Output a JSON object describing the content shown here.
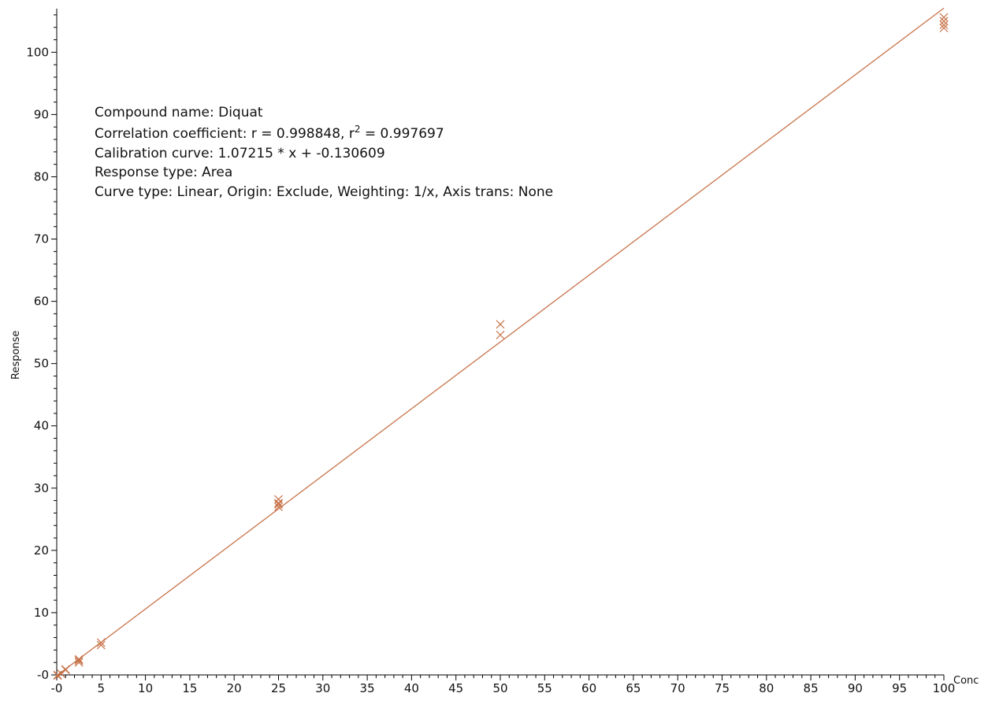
{
  "chart_data": {
    "type": "scatter",
    "xlabel": "Conc",
    "ylabel": "Response",
    "xlim": [
      0,
      100
    ],
    "ylim": [
      0,
      107
    ],
    "x_ticks": [
      0,
      5,
      10,
      15,
      20,
      25,
      30,
      35,
      40,
      45,
      50,
      55,
      60,
      65,
      70,
      75,
      80,
      85,
      90,
      95,
      100
    ],
    "x_tick_labels": [
      "-0",
      "5",
      "10",
      "15",
      "20",
      "25",
      "30",
      "35",
      "40",
      "45",
      "50",
      "55",
      "60",
      "65",
      "70",
      "75",
      "80",
      "85",
      "90",
      "95",
      "100"
    ],
    "y_ticks": [
      0,
      10,
      20,
      30,
      40,
      50,
      60,
      70,
      80,
      90,
      100
    ],
    "y_tick_labels": [
      "-0",
      "10",
      "20",
      "30",
      "40",
      "50",
      "60",
      "70",
      "80",
      "90",
      "100"
    ],
    "grid": false,
    "legend": "none",
    "color": "#c8734a",
    "points": [
      {
        "x": 0.1,
        "y": 0.0
      },
      {
        "x": 0.1,
        "y": -0.1
      },
      {
        "x": 0.5,
        "y": 0.2
      },
      {
        "x": 1.0,
        "y": 0.9
      },
      {
        "x": 1.0,
        "y": 0.8
      },
      {
        "x": 2.5,
        "y": 2.5
      },
      {
        "x": 2.5,
        "y": 2.3
      },
      {
        "x": 2.5,
        "y": 2.0
      },
      {
        "x": 5.0,
        "y": 5.2
      },
      {
        "x": 5.0,
        "y": 4.8
      },
      {
        "x": 25.0,
        "y": 28.2
      },
      {
        "x": 25.0,
        "y": 27.6
      },
      {
        "x": 25.0,
        "y": 27.4
      },
      {
        "x": 25.0,
        "y": 27.0
      },
      {
        "x": 50.0,
        "y": 56.3
      },
      {
        "x": 50.0,
        "y": 54.6
      },
      {
        "x": 100.0,
        "y": 105.6
      },
      {
        "x": 100.0,
        "y": 105.0
      },
      {
        "x": 100.0,
        "y": 104.4
      },
      {
        "x": 100.0,
        "y": 103.9
      }
    ],
    "fit": {
      "slope": 1.07215,
      "intercept": -0.130609,
      "x_range": [
        0,
        100
      ]
    },
    "annotations": {
      "compound": "Compound name: Diquat",
      "correlation_prefix": "Correlation coefficient: r = 0.998848, r",
      "correlation_sup": "2",
      "correlation_suffix": " = 0.997697",
      "calibration": "Calibration curve: 1.07215 * x + -0.130609",
      "response_type": "Response type: Area",
      "curve_type": "Curve type: Linear, Origin: Exclude, Weighting: 1/x, Axis trans: None"
    }
  }
}
